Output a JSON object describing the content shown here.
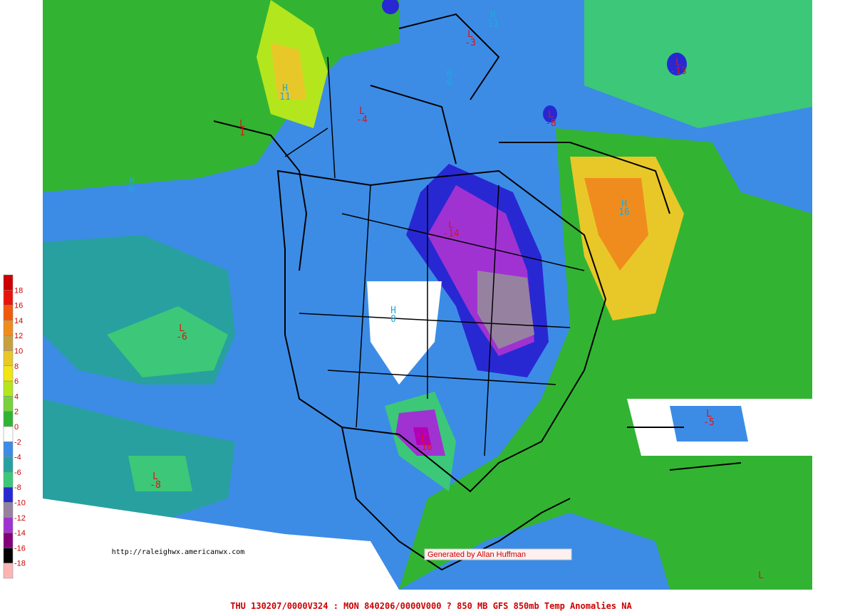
{
  "legend": {
    "labels": [
      18,
      16,
      14,
      12,
      10,
      8,
      6,
      4,
      2,
      0,
      -2,
      -4,
      -6,
      -8,
      -10,
      -12,
      -14,
      -16,
      -18
    ],
    "colors": [
      "#cc0000",
      "#e8140c",
      "#f05a0c",
      "#f08c1e",
      "#c8a040",
      "#e8c828",
      "#f0e614",
      "#b4e61e",
      "#78d23c",
      "#32b432",
      "#ffffff",
      "#3c8ce6",
      "#28a0a0",
      "#3cc878",
      "#2828d2",
      "#9682a0",
      "#a032d2",
      "#82007a",
      "#000000",
      "#ffb4b4"
    ]
  },
  "centers": [
    {
      "kind": "H",
      "value": 11
    },
    {
      "kind": "L",
      "value": -3
    },
    {
      "kind": "H",
      "value": 6
    },
    {
      "kind": "L",
      "value": -13
    },
    {
      "kind": "H",
      "value": 11
    },
    {
      "kind": "L",
      "value": -4
    },
    {
      "kind": "L",
      "value": 1
    },
    {
      "kind": "L",
      "value": -8
    },
    {
      "kind": "H",
      "value": 6
    },
    {
      "kind": "H",
      "value": 16
    },
    {
      "kind": "L",
      "value": -14
    },
    {
      "kind": "H",
      "value": 0
    },
    {
      "kind": "L",
      "value": -6
    },
    {
      "kind": "L",
      "value": -5
    },
    {
      "kind": "L",
      "value": -16
    },
    {
      "kind": "L",
      "value": -8
    },
    {
      "kind": "L"
    }
  ],
  "url": "http://raleighwx.americanwx.com",
  "credit": "Generated by Allan Huffman",
  "caption": "THU 130207/0000V324 : MON 840206/0000V000  ? 850 MB GFS 850mb Temp Anomalies NA"
}
